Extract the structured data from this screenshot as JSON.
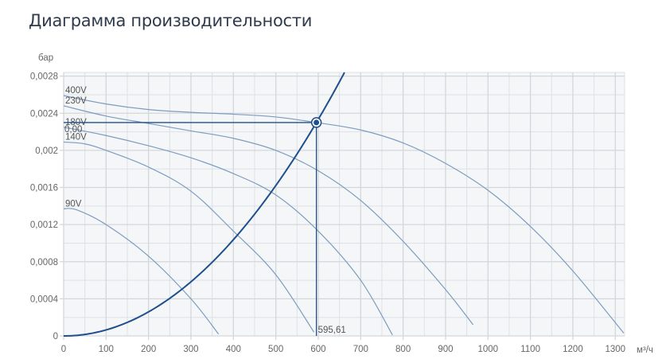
{
  "title": "Диаграмма производительности",
  "chart_data": {
    "type": "line",
    "title": "Диаграмма производительности",
    "xlabel": "м³/ч",
    "ylabel": "бар",
    "xlim": [
      0,
      1322
    ],
    "ylim": [
      0,
      0.00284
    ],
    "grid": true,
    "x_ticks": [
      "0",
      "100",
      "200",
      "300",
      "400",
      "500",
      "600",
      "700",
      "800",
      "900",
      "1000",
      "1100",
      "1200",
      "1300"
    ],
    "y_ticks": [
      "0",
      "0,0004",
      "0,0008",
      "0,0012",
      "0,0016",
      "0,002",
      "0,0024",
      "0,0028"
    ],
    "series": [
      {
        "name": "400V",
        "points": [
          [
            0,
            0.00259
          ],
          [
            100,
            0.0025
          ],
          [
            200,
            0.00244
          ],
          [
            300,
            0.00241
          ],
          [
            400,
            0.00239
          ],
          [
            500,
            0.00236
          ],
          [
            595.61,
            0.0023
          ],
          [
            700,
            0.00222
          ],
          [
            800,
            0.00208
          ],
          [
            900,
            0.00186
          ],
          [
            1000,
            0.00157
          ],
          [
            1100,
            0.00118
          ],
          [
            1200,
            0.0007
          ],
          [
            1320,
            3e-05
          ]
        ]
      },
      {
        "name": "230V",
        "points": [
          [
            0,
            0.00248
          ],
          [
            100,
            0.00237
          ],
          [
            200,
            0.00229
          ],
          [
            300,
            0.00221
          ],
          [
            400,
            0.00213
          ],
          [
            500,
            0.002
          ],
          [
            600,
            0.00178
          ],
          [
            700,
            0.00146
          ],
          [
            800,
            0.00102
          ],
          [
            900,
            0.0005
          ],
          [
            965,
            0.00012
          ]
        ]
      },
      {
        "name": "180V",
        "points": [
          [
            0,
            0.00225
          ],
          [
            100,
            0.00216
          ],
          [
            200,
            0.00205
          ],
          [
            300,
            0.00192
          ],
          [
            400,
            0.00175
          ],
          [
            500,
            0.00152
          ],
          [
            600,
            0.00113
          ],
          [
            700,
            0.0006
          ],
          [
            775,
            1e-05
          ]
        ]
      },
      {
        "name": "140V",
        "points": [
          [
            0,
            0.00209
          ],
          [
            50,
            0.00207
          ],
          [
            100,
            0.002
          ],
          [
            200,
            0.00182
          ],
          [
            300,
            0.00156
          ],
          [
            400,
            0.00113
          ],
          [
            500,
            0.00066
          ],
          [
            590,
            4e-05
          ]
        ]
      },
      {
        "name": "90V",
        "points": [
          [
            0,
            0.00137
          ],
          [
            30,
            0.00136
          ],
          [
            100,
            0.0012
          ],
          [
            200,
            0.00086
          ],
          [
            300,
            0.0004
          ],
          [
            365,
            2e-05
          ]
        ]
      }
    ],
    "system_curve": {
      "type": "quadratic",
      "passes_through": [
        595.61,
        0.0023
      ]
    },
    "operating_point": {
      "x": 595.61,
      "y": 0.0023,
      "x_label": "595,61",
      "y_label": "0,00"
    },
    "colors": {
      "fan_curves": "#7d9cc0",
      "system_curve": "#1f4f8c",
      "grid": "#dde1e6",
      "plot_bg": "#f4f6f8"
    }
  }
}
